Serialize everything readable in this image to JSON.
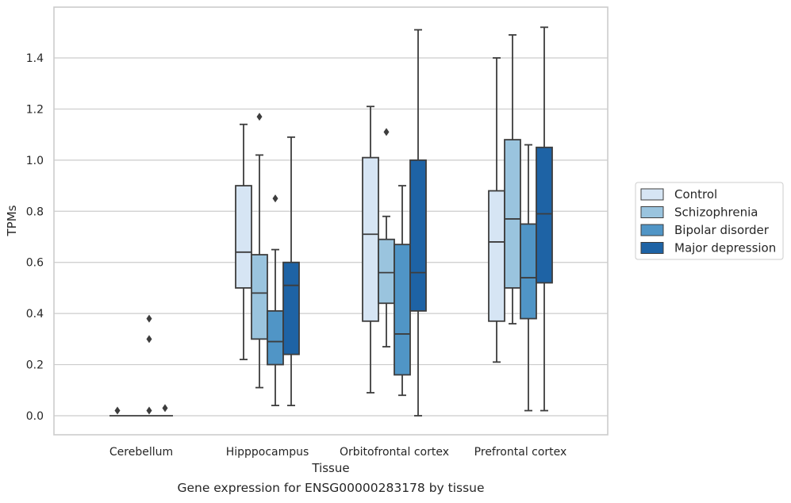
{
  "caption": "Gene expression for ENSG00000283178 by tissue",
  "chart_data": {
    "type": "box",
    "xlabel": "Tissue",
    "ylabel": "TPMs",
    "ylim": [
      -0.07,
      1.6
    ],
    "yticks": [
      "0.0",
      "0.2",
      "0.4",
      "0.6",
      "0.8",
      "1.0",
      "1.2",
      "1.4"
    ],
    "grid": "horizontal",
    "legend_position": "right",
    "categories": [
      "Cerebellum",
      "Hipppocampus",
      "Orbitofrontal cortex",
      "Prefrontal cortex"
    ],
    "series": [
      {
        "name": "Control",
        "color": "#d6e5f4",
        "boxes": [
          {
            "min": 0,
            "q1": 0,
            "median": 0,
            "q3": 0,
            "max": 0,
            "outliers": [
              0.02
            ]
          },
          {
            "min": 0.22,
            "q1": 0.5,
            "median": 0.64,
            "q3": 0.9,
            "max": 1.14,
            "outliers": []
          },
          {
            "min": 0.09,
            "q1": 0.37,
            "median": 0.71,
            "q3": 1.01,
            "max": 1.21,
            "outliers": []
          },
          {
            "min": 0.21,
            "q1": 0.37,
            "median": 0.68,
            "q3": 0.88,
            "max": 1.4,
            "outliers": []
          }
        ]
      },
      {
        "name": "Schizophrenia",
        "color": "#9ac4de",
        "boxes": [
          {
            "min": 0,
            "q1": 0,
            "median": 0,
            "q3": 0,
            "max": 0,
            "outliers": []
          },
          {
            "min": 0.11,
            "q1": 0.3,
            "median": 0.48,
            "q3": 0.63,
            "max": 1.02,
            "outliers": [
              1.17
            ]
          },
          {
            "min": 0.27,
            "q1": 0.44,
            "median": 0.56,
            "q3": 0.69,
            "max": 0.78,
            "outliers": [
              1.11
            ]
          },
          {
            "min": 0.36,
            "q1": 0.5,
            "median": 0.77,
            "q3": 1.08,
            "max": 1.49,
            "outliers": []
          }
        ]
      },
      {
        "name": "Bipolar disorder",
        "color": "#5095c6",
        "boxes": [
          {
            "min": 0,
            "q1": 0,
            "median": 0,
            "q3": 0,
            "max": 0,
            "outliers": [
              0.38,
              0.3,
              0.02
            ]
          },
          {
            "min": 0.04,
            "q1": 0.2,
            "median": 0.29,
            "q3": 0.41,
            "max": 0.65,
            "outliers": [
              0.85
            ]
          },
          {
            "min": 0.08,
            "q1": 0.16,
            "median": 0.32,
            "q3": 0.67,
            "max": 0.9,
            "outliers": []
          },
          {
            "min": 0.02,
            "q1": 0.38,
            "median": 0.54,
            "q3": 0.75,
            "max": 1.06,
            "outliers": []
          }
        ]
      },
      {
        "name": "Major depression",
        "color": "#1e63a5",
        "boxes": [
          {
            "min": 0,
            "q1": 0,
            "median": 0,
            "q3": 0,
            "max": 0,
            "outliers": [
              0.03
            ]
          },
          {
            "min": 0.04,
            "q1": 0.24,
            "median": 0.51,
            "q3": 0.6,
            "max": 1.09,
            "outliers": []
          },
          {
            "min": 0.0,
            "q1": 0.41,
            "median": 0.56,
            "q3": 1.0,
            "max": 1.51,
            "outliers": []
          },
          {
            "min": 0.02,
            "q1": 0.52,
            "median": 0.79,
            "q3": 1.05,
            "max": 1.52,
            "outliers": []
          }
        ]
      }
    ]
  }
}
